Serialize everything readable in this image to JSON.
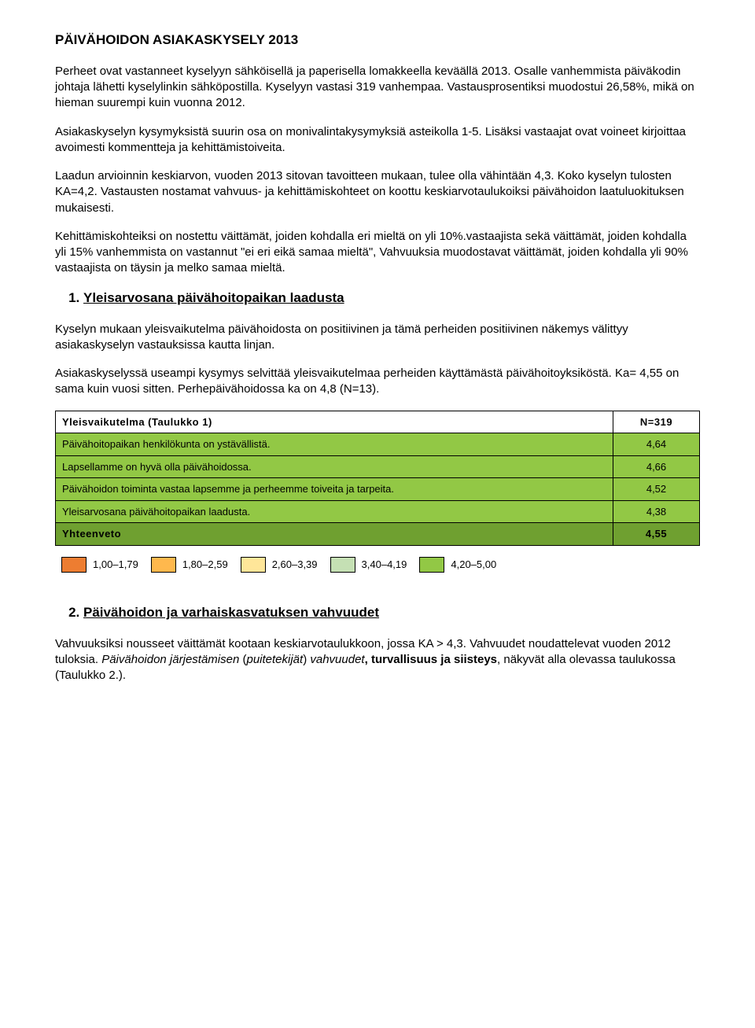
{
  "title": "PÄIVÄHOIDON ASIAKASKYSELY 2013",
  "paragraphs": {
    "p1": "Perheet ovat vastanneet kyselyyn sähköisellä ja paperisella lomakkeella keväällä 2013. Osalle vanhemmista päiväkodin johtaja lähetti kyselylinkin sähköpostilla. Kyselyyn vastasi 319 vanhempaa. Vastausprosentiksi muodostui 26,58%, mikä on hieman suurempi kuin vuonna 2012.",
    "p2": "Asiakaskyselyn kysymyksistä suurin osa on monivalintakysymyksiä asteikolla 1-5. Lisäksi vastaajat ovat voineet kirjoittaa avoimesti kommentteja ja kehittämistoiveita.",
    "p3": "Laadun arvioinnin keskiarvon, vuoden 2013 sitovan tavoitteen mukaan, tulee olla vähintään 4,3. Koko kyselyn tulosten KA=4,2. Vastausten nostamat vahvuus- ja kehittämiskohteet on koottu keskiarvotaulukoiksi päivähoidon laatuluokituksen mukaisesti.",
    "p4": "Kehittämiskohteiksi on nostettu väittämät, joiden kohdalla eri mieltä on yli 10%.vastaajista sekä väittämät, joiden kohdalla yli 15% vanhemmista on vastannut \"ei eri eikä samaa mieltä\", Vahvuuksia muodostavat väittämät, joiden kohdalla yli 90% vastaajista on täysin ja melko samaa mieltä."
  },
  "section1": {
    "num": "1.",
    "title": "Yleisarvosana päivähoitopaikan laadusta",
    "p1": "Kyselyn mukaan yleisvaikutelma päivähoidosta on positiivinen ja tämä perheiden positiivinen näkemys välittyy asiakaskyselyn vastauksissa kautta linjan.",
    "p2": "Asiakaskyselyssä useampi kysymys selvittää yleisvaikutelmaa perheiden käyttämästä päivähoitoyksiköstä. Ka= 4,55 on sama kuin vuosi sitten. Perhepäivähoidossa ka on 4,8 (N=13)."
  },
  "table1": {
    "header_left": "Yleisvaikutelma (Taulukko 1)",
    "header_right": "N=319",
    "header_bg": "#ffffff",
    "rows": [
      {
        "label": "Päivähoitopaikan henkilökunta on ystävällistä.",
        "value": "4,64",
        "bg": "#92c845"
      },
      {
        "label": "Lapsellamme on hyvä olla päivähoidossa.",
        "value": "4,66",
        "bg": "#92c845"
      },
      {
        "label": "Päivähoidon toiminta vastaa lapsemme ja perheemme toiveita ja tarpeita.",
        "value": "4,52",
        "bg": "#92c845"
      },
      {
        "label": "Yleisarvosana päivähoitopaikan laadusta.",
        "value": "4,38",
        "bg": "#92c845"
      }
    ],
    "footer_label": "Yhteenveto",
    "footer_value": "4,55",
    "footer_bg": "#6fa030"
  },
  "legend": [
    {
      "range": "1,00–1,79",
      "color": "#ed7d31"
    },
    {
      "range": "1,80–2,59",
      "color": "#ffb84d"
    },
    {
      "range": "2,60–3,39",
      "color": "#ffe699"
    },
    {
      "range": "3,40–4,19",
      "color": "#c5e0b4"
    },
    {
      "range": "4,20–5,00",
      "color": "#92c845"
    }
  ],
  "section2": {
    "num": "2.",
    "title": "Päivähoidon ja varhaiskasvatuksen vahvuudet",
    "p1_part1": "Vahvuuksiksi nousseet väittämät kootaan keskiarvotaulukkoon, jossa KA > 4,3. Vahvuudet noudattelevat vuoden 2012 tuloksia. ",
    "p1_italic": "Päivähoidon järjestämisen ",
    "p1_italic2": "(puitetekijät) vahvuudet",
    "p1_bold": ", turvallisuus ja siisteys",
    "p1_end": ", näkyvät alla olevassa taulukossa (Taulukko 2.)."
  }
}
